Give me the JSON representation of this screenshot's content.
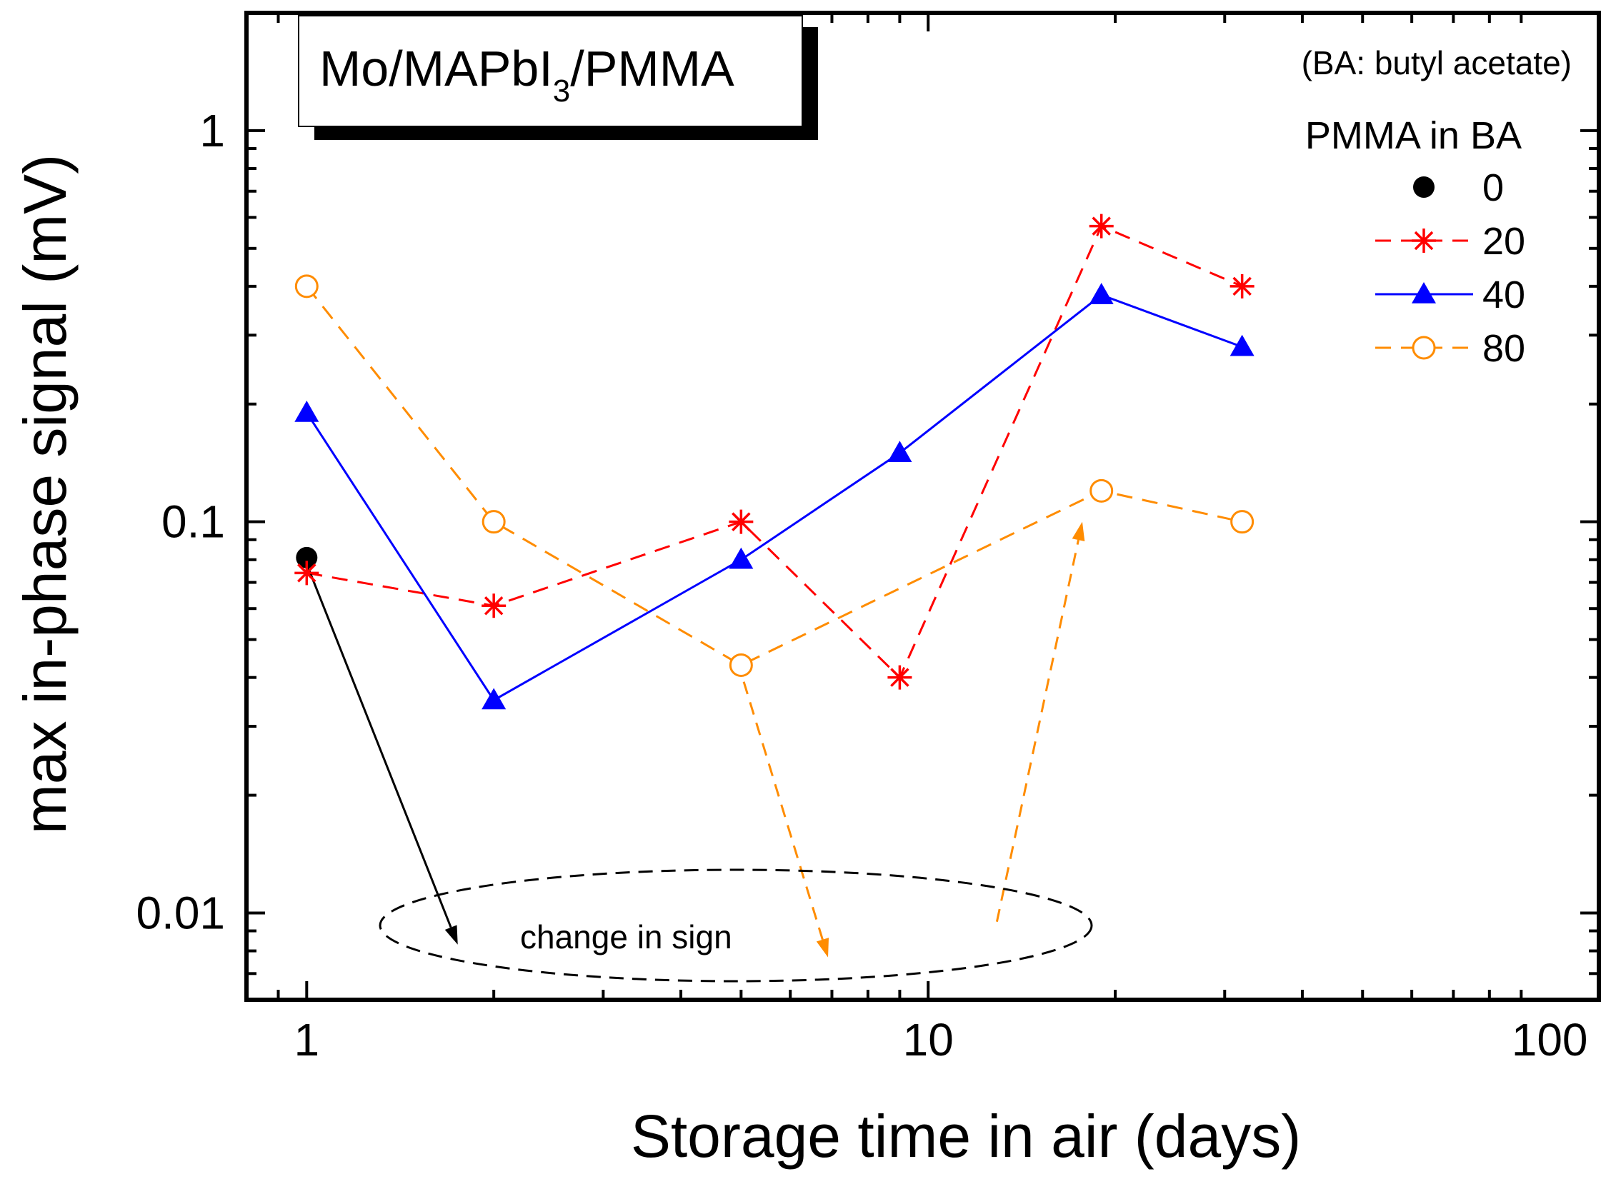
{
  "chart_data": {
    "type": "line",
    "x_scale": "log",
    "y_scale": "log",
    "xlabel": "Storage time in air (days)",
    "ylabel": "max in-phase signal (mV)",
    "xlim": [
      0.8,
      120
    ],
    "ylim": [
      0.006,
      2.0
    ],
    "x_ticks": [
      1,
      10,
      100
    ],
    "x_tick_labels": [
      "1",
      "10",
      "100"
    ],
    "y_ticks": [
      0.01,
      0.1,
      1
    ],
    "y_tick_labels": [
      "0.01",
      "0.1",
      "1"
    ],
    "sample_label": {
      "prefix": "Mo/MAPbI",
      "subscript": "3",
      "suffix": "/PMMA"
    },
    "note": "(BA: butyl acetate)",
    "legend_title": "PMMA in BA",
    "annotation": "change in sign",
    "series": [
      {
        "name": "0",
        "color": "#000000",
        "marker": "filled-circle",
        "line": "none",
        "x": [
          1
        ],
        "y": [
          0.081
        ]
      },
      {
        "name": "20",
        "color": "#ff0000",
        "marker": "asterisk",
        "line": "dashed",
        "x": [
          1,
          2,
          5,
          9,
          19,
          32
        ],
        "y": [
          0.074,
          0.061,
          0.1,
          0.04,
          0.57,
          0.4
        ]
      },
      {
        "name": "40",
        "color": "#0000ff",
        "marker": "filled-triangle",
        "line": "solid",
        "x": [
          1,
          2,
          5,
          9,
          19,
          32
        ],
        "y": [
          0.19,
          0.035,
          0.08,
          0.15,
          0.38,
          0.28
        ]
      },
      {
        "name": "80",
        "color": "#ff8c00",
        "marker": "open-circle",
        "line": "dashed",
        "x": [
          1,
          2,
          5,
          19,
          32
        ],
        "y": [
          0.4,
          0.1,
          0.043,
          0.12,
          0.1
        ]
      }
    ],
    "arrows": [
      {
        "name": "arrow-series-0-to-sign",
        "color": "#000000",
        "line": "solid",
        "from": [
          1,
          0.078
        ],
        "to": [
          1.75,
          0.0083
        ]
      },
      {
        "name": "arrow-series-80-down",
        "color": "#ff8c00",
        "line": "dashed",
        "from": [
          5.05,
          0.039
        ],
        "to": [
          6.9,
          0.0077
        ]
      },
      {
        "name": "arrow-series-80-up",
        "color": "#ff8c00",
        "line": "dashed",
        "from": [
          12.9,
          0.0095
        ],
        "to": [
          17.7,
          0.1
        ]
      }
    ]
  }
}
